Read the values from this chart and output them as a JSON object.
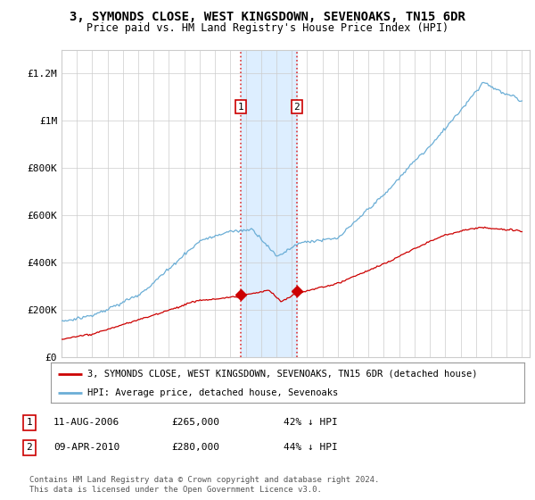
{
  "title": "3, SYMONDS CLOSE, WEST KINGSDOWN, SEVENOAKS, TN15 6DR",
  "subtitle": "Price paid vs. HM Land Registry's House Price Index (HPI)",
  "ylabel_ticks": [
    "£0",
    "£200K",
    "£400K",
    "£600K",
    "£800K",
    "£1M",
    "£1.2M"
  ],
  "ytick_vals": [
    0,
    200000,
    400000,
    600000,
    800000,
    1000000,
    1200000
  ],
  "ylim": [
    0,
    1300000
  ],
  "sale1_date": "11-AUG-2006",
  "sale1_price": 265000,
  "sale1_pct": "42% ↓ HPI",
  "sale1_label": "1",
  "sale2_date": "09-APR-2010",
  "sale2_price": 280000,
  "sale2_pct": "44% ↓ HPI",
  "sale2_label": "2",
  "legend_line1": "3, SYMONDS CLOSE, WEST KINGSDOWN, SEVENOAKS, TN15 6DR (detached house)",
  "legend_line2": "HPI: Average price, detached house, Sevenoaks",
  "footer": "Contains HM Land Registry data © Crown copyright and database right 2024.\nThis data is licensed under the Open Government Licence v3.0.",
  "hpi_color": "#6baed6",
  "price_color": "#cc0000",
  "shade_color": "#ddeeff",
  "dashed_color": "#dd3333",
  "background_color": "#ffffff",
  "grid_color": "#cccccc"
}
